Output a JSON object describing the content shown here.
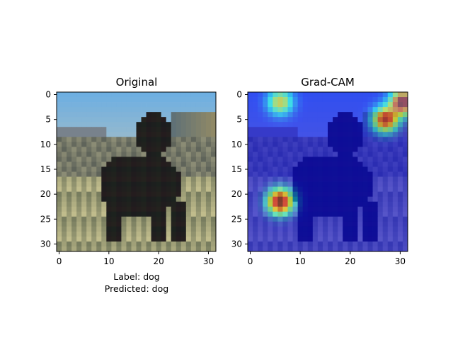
{
  "chart_data": [
    {
      "type": "image",
      "title": "Original",
      "x_ticks": [
        "0",
        "10",
        "20",
        "30"
      ],
      "y_ticks": [
        "0",
        "5",
        "10",
        "15",
        "20",
        "25",
        "30"
      ],
      "xlim": [
        -0.5,
        31.5
      ],
      "ylim": [
        31.5,
        -0.5
      ],
      "caption_lines": [
        "Label: dog",
        "Predicted: dog"
      ]
    },
    {
      "type": "heatmap",
      "title": "Grad-CAM",
      "x_ticks": [
        "0",
        "10",
        "20",
        "30"
      ],
      "y_ticks": [
        "0",
        "5",
        "10",
        "15",
        "20",
        "25",
        "30"
      ],
      "xlim": [
        -0.5,
        31.5
      ],
      "ylim": [
        31.5,
        -0.5
      ],
      "colormap": "jet",
      "hotspots": [
        {
          "x": 6,
          "y": 21.5,
          "intensity": 0.95
        },
        {
          "x": 27,
          "y": 5,
          "intensity": 0.8
        },
        {
          "x": 30.5,
          "y": 1.5,
          "intensity": 0.9
        },
        {
          "x": 6,
          "y": 1.5,
          "intensity": 0.55
        }
      ]
    }
  ]
}
